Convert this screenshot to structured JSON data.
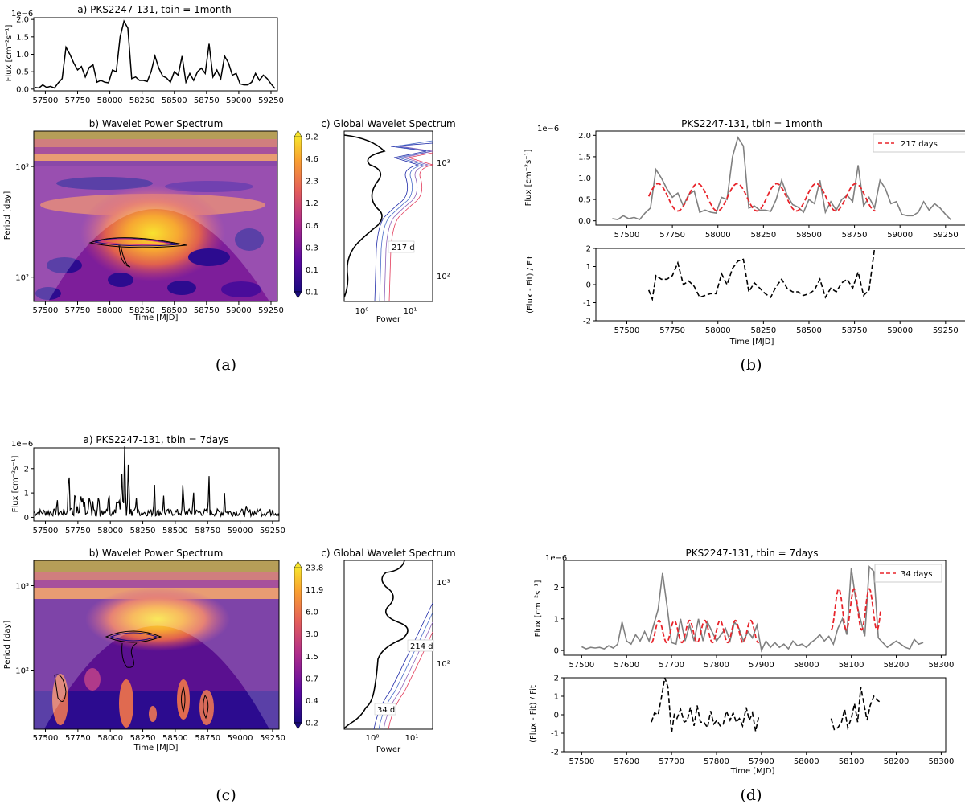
{
  "colors": {
    "curve": "#000000",
    "data_gray": "#808080",
    "fit_red": "#e8232a",
    "wavelet_low": "#2c0b8f",
    "wavelet_mid": "#c43c89",
    "wavelet_high": "#fbe12d"
  },
  "panel_labels": [
    "(a)",
    "(b)",
    "(c)",
    "(d)"
  ],
  "chart_data": [
    {
      "id": "a_flux",
      "type": "line",
      "title": "a) PKS2247-131, tbin = 1month",
      "xlabel": "",
      "ylabel": "Flux [cm⁻²s⁻¹]",
      "offset_label": "1e−6",
      "xlim": [
        57410,
        59300
      ],
      "ylim": [
        -0.05,
        2.05
      ],
      "xticks": [
        57500,
        57750,
        58000,
        58250,
        58500,
        58750,
        59000,
        59250
      ],
      "yticks": [
        0.0,
        0.5,
        1.0,
        1.5,
        2.0
      ],
      "ytick_labels": [
        "0.0",
        "0.5",
        "1.0",
        "1.5",
        "2.0"
      ],
      "series": [
        {
          "x": [
            57420,
            57450,
            57480,
            57510,
            57540,
            57570,
            57600,
            57630,
            57660,
            57690,
            57720,
            57750,
            57780,
            57810,
            57840,
            57870,
            57900,
            57930,
            57960,
            57990,
            58020,
            58050,
            58080,
            58110,
            58140,
            58170,
            58200,
            58230,
            58260,
            58290,
            58320,
            58350,
            58380,
            58410,
            58440,
            58470,
            58500,
            58530,
            58560,
            58590,
            58620,
            58650,
            58680,
            58710,
            58740,
            58770,
            58800,
            58830,
            58860,
            58890,
            58920,
            58950,
            58980,
            59010,
            59040,
            59070,
            59100,
            59130,
            59160,
            59190,
            59220,
            59250,
            59280
          ],
          "y": [
            0.05,
            0.03,
            0.12,
            0.05,
            0.08,
            0.03,
            0.18,
            0.3,
            1.2,
            1.0,
            0.75,
            0.55,
            0.65,
            0.35,
            0.62,
            0.7,
            0.2,
            0.25,
            0.2,
            0.18,
            0.55,
            0.5,
            1.5,
            1.95,
            1.75,
            0.3,
            0.35,
            0.25,
            0.25,
            0.22,
            0.5,
            0.95,
            0.6,
            0.38,
            0.32,
            0.2,
            0.5,
            0.4,
            0.95,
            0.2,
            0.45,
            0.25,
            0.5,
            0.6,
            0.45,
            1.3,
            0.35,
            0.55,
            0.3,
            0.95,
            0.75,
            0.4,
            0.45,
            0.15,
            0.12,
            0.12,
            0.2,
            0.45,
            0.25,
            0.4,
            0.3,
            0.15,
            0.02
          ]
        }
      ]
    },
    {
      "id": "a_wavelet",
      "type": "heatmap",
      "title": "b) Wavelet Power Spectrum",
      "xlabel": "Time [MJD]",
      "ylabel": "Period [day]",
      "xlim": [
        57410,
        59300
      ],
      "ylim_log10": [
        1.78,
        3.32
      ],
      "xticks": [
        57500,
        57750,
        58000,
        58250,
        58500,
        58750,
        59000,
        59250
      ],
      "yticks": [
        100,
        1000
      ],
      "ytick_labels": [
        "10²",
        "10³"
      ],
      "colorbar": [
        "0.1",
        "0.1",
        "0.3",
        "0.6",
        "1.2",
        "2.3",
        "4.6",
        "9.2"
      ],
      "peak": {
        "x": 58200,
        "period": 200
      }
    },
    {
      "id": "a_global",
      "type": "line",
      "title": "c) Global Wavelet Spectrum",
      "xlabel": "Power",
      "xtick_labels": [
        "10⁰",
        "10¹"
      ],
      "yticks": [
        100,
        1000
      ],
      "ytick_labels": [
        "10²",
        "10³"
      ],
      "annotation": "217 d"
    },
    {
      "id": "b_flux",
      "type": "line",
      "title": "PKS2247-131, tbin = 1month",
      "xlabel": "",
      "ylabel": "Flux [cm⁻²s⁻¹]",
      "offset_label": "1e−6",
      "xlim": [
        57330,
        59370
      ],
      "ylim": [
        -0.1,
        2.1
      ],
      "xticks": [
        57500,
        57750,
        58000,
        58250,
        58500,
        58750,
        59000,
        59250
      ],
      "yticks": [
        0.0,
        0.5,
        1.0,
        1.5,
        2.0
      ],
      "ytick_labels": [
        "0.0",
        "0.5",
        "1.0",
        "1.5",
        "2.0"
      ],
      "legend": "217 days",
      "fit": {
        "period": 217,
        "mean": 0.55,
        "amp": 0.32,
        "x0": 57620,
        "x1": 58870,
        "phase_x": 57672
      },
      "series": [
        {
          "x": [
            57420,
            57450,
            57480,
            57510,
            57540,
            57570,
            57600,
            57630,
            57660,
            57690,
            57720,
            57750,
            57780,
            57810,
            57840,
            57870,
            57900,
            57930,
            57960,
            57990,
            58020,
            58050,
            58080,
            58110,
            58140,
            58170,
            58200,
            58230,
            58260,
            58290,
            58320,
            58350,
            58380,
            58410,
            58440,
            58470,
            58500,
            58530,
            58560,
            58590,
            58620,
            58650,
            58680,
            58710,
            58740,
            58770,
            58800,
            58830,
            58860,
            58890,
            58920,
            58950,
            58980,
            59010,
            59040,
            59070,
            59100,
            59130,
            59160,
            59190,
            59220,
            59250,
            59280
          ],
          "y": [
            0.05,
            0.03,
            0.12,
            0.05,
            0.08,
            0.03,
            0.18,
            0.3,
            1.2,
            1.0,
            0.75,
            0.55,
            0.65,
            0.35,
            0.62,
            0.7,
            0.2,
            0.25,
            0.2,
            0.18,
            0.55,
            0.5,
            1.5,
            1.95,
            1.75,
            0.3,
            0.35,
            0.25,
            0.25,
            0.22,
            0.5,
            0.95,
            0.6,
            0.38,
            0.32,
            0.2,
            0.5,
            0.4,
            0.95,
            0.2,
            0.45,
            0.25,
            0.5,
            0.6,
            0.45,
            1.3,
            0.35,
            0.55,
            0.3,
            0.95,
            0.75,
            0.4,
            0.45,
            0.15,
            0.12,
            0.12,
            0.2,
            0.45,
            0.25,
            0.4,
            0.3,
            0.15,
            0.02
          ]
        }
      ]
    },
    {
      "id": "b_resid",
      "type": "line",
      "title": "",
      "xlabel": "Time [MJD]",
      "ylabel": "(Flux - Fit) / Fit",
      "xlim": [
        57330,
        59370
      ],
      "ylim": [
        -2,
        2
      ],
      "xticks": [
        57500,
        57750,
        58000,
        58250,
        58500,
        58750,
        59000,
        59250
      ],
      "yticks": [
        -2,
        -1,
        0,
        1,
        2
      ],
      "series": [
        {
          "x": [
            57620,
            57640,
            57660,
            57690,
            57720,
            57750,
            57780,
            57810,
            57840,
            57870,
            57900,
            57930,
            57960,
            57990,
            58020,
            58050,
            58080,
            58110,
            58140,
            58170,
            58200,
            58230,
            58260,
            58290,
            58320,
            58350,
            58380,
            58410,
            58440,
            58470,
            58500,
            58530,
            58560,
            58590,
            58620,
            58650,
            58680,
            58710,
            58740,
            58770,
            58800,
            58830,
            58860
          ],
          "y": [
            -0.3,
            -0.8,
            0.5,
            0.3,
            0.3,
            0.5,
            1.2,
            0.0,
            0.2,
            -0.1,
            -0.7,
            -0.6,
            -0.5,
            -0.5,
            0.6,
            0.0,
            0.9,
            1.3,
            1.4,
            -0.4,
            0.1,
            -0.2,
            -0.5,
            -0.7,
            -0.1,
            0.3,
            -0.2,
            -0.4,
            -0.4,
            -0.6,
            -0.5,
            -0.3,
            0.3,
            -0.7,
            -0.2,
            -0.4,
            0.1,
            0.3,
            -0.2,
            0.7,
            -0.6,
            -0.3,
            2.1
          ]
        }
      ]
    },
    {
      "id": "c_flux",
      "type": "line",
      "title": "a) PKS2247-131, tbin = 7days",
      "xlabel": "",
      "ylabel": "Flux [cm⁻²s⁻¹]",
      "offset_label": "1e−6",
      "xlim": [
        57410,
        59300
      ],
      "ylim": [
        -0.15,
        2.85
      ],
      "xticks": [
        57500,
        57750,
        58000,
        58250,
        58500,
        58750,
        59000,
        59250
      ],
      "yticks": [
        0,
        1,
        2
      ],
      "spikes": [
        {
          "x": 57680,
          "y": 2.45
        },
        {
          "x": 57590,
          "y": 0.9
        },
        {
          "x": 57730,
          "y": 1.1
        },
        {
          "x": 57790,
          "y": 1.0
        },
        {
          "x": 57840,
          "y": 1.2
        },
        {
          "x": 57910,
          "y": 1.2
        },
        {
          "x": 57990,
          "y": 1.0
        },
        {
          "x": 58090,
          "y": 2.0
        },
        {
          "x": 58110,
          "y": 2.6
        },
        {
          "x": 58140,
          "y": 2.65
        },
        {
          "x": 58200,
          "y": 0.9
        },
        {
          "x": 58340,
          "y": 1.5
        },
        {
          "x": 58410,
          "y": 1.0
        },
        {
          "x": 58560,
          "y": 1.7
        },
        {
          "x": 58640,
          "y": 1.3
        },
        {
          "x": 58760,
          "y": 1.9
        },
        {
          "x": 58880,
          "y": 1.0
        },
        {
          "x": 59050,
          "y": 0.6
        },
        {
          "x": 59150,
          "y": 0.5
        },
        {
          "x": 59250,
          "y": 0.35
        }
      ]
    },
    {
      "id": "c_wavelet",
      "type": "heatmap",
      "title": "b) Wavelet Power Spectrum",
      "xlabel": "Time [MJD]",
      "ylabel": "Period [day]",
      "xlim": [
        57410,
        59300
      ],
      "ylim_log10": [
        1.3,
        3.3
      ],
      "xticks": [
        57500,
        57750,
        58000,
        58250,
        58500,
        58750,
        59000,
        59250
      ],
      "yticks": [
        100,
        1000
      ],
      "ytick_labels": [
        "10²",
        "10³"
      ],
      "colorbar": [
        "0.2",
        "0.4",
        "0.7",
        "1.5",
        "3.0",
        "6.0",
        "11.9",
        "23.8"
      ],
      "peak": {
        "x": 58230,
        "period": 200
      }
    },
    {
      "id": "c_global",
      "type": "line",
      "title": "c) Global Wavelet Spectrum",
      "xlabel": "Power",
      "xtick_labels": [
        "10⁰",
        "10¹"
      ],
      "yticks": [
        100,
        1000
      ],
      "ytick_labels": [
        "10²",
        "10³"
      ],
      "annotations": [
        "214 d",
        "34 d"
      ]
    },
    {
      "id": "d_flux",
      "type": "line",
      "title": "PKS2247-131, tbin = 7days",
      "xlabel": "",
      "ylabel": "Flux [cm⁻²s⁻¹]",
      "offset_label": "1e−6",
      "xlim": [
        57460,
        58310
      ],
      "ylim": [
        -0.15,
        2.85
      ],
      "xticks": [
        57500,
        57600,
        57700,
        57800,
        57900,
        58000,
        58100,
        58200,
        58300
      ],
      "yticks": [
        0,
        1,
        2
      ],
      "legend": "34 days",
      "fits": [
        {
          "period": 34,
          "mean": 0.6,
          "amp": 0.35,
          "x0": 57655,
          "x1": 57895,
          "phase_x": 57672
        },
        {
          "period": 34,
          "mean": 1.3,
          "amp": 0.65,
          "x0": 58055,
          "x1": 58165,
          "phase_x": 58072
        }
      ],
      "series": [
        {
          "x": [
            57500,
            57510,
            57520,
            57530,
            57540,
            57550,
            57560,
            57570,
            57580,
            57590,
            57600,
            57610,
            57620,
            57630,
            57640,
            57650,
            57660,
            57670,
            57680,
            57690,
            57700,
            57710,
            57720,
            57730,
            57740,
            57750,
            57760,
            57770,
            57780,
            57790,
            57800,
            57810,
            57820,
            57830,
            57840,
            57850,
            57860,
            57870,
            57880,
            57890,
            57900,
            57910,
            57920,
            57930,
            57940,
            57950,
            57960,
            57970,
            57980,
            57990,
            58000,
            58010,
            58020,
            58030,
            58040,
            58050,
            58060,
            58070,
            58080,
            58090,
            58100,
            58110,
            58120,
            58130,
            58140,
            58150,
            58160,
            58170,
            58180,
            58190,
            58200,
            58210,
            58220,
            58230,
            58240,
            58250,
            58260
          ],
          "y": [
            0.12,
            0.05,
            0.1,
            0.08,
            0.1,
            0.05,
            0.15,
            0.08,
            0.2,
            0.9,
            0.3,
            0.2,
            0.5,
            0.3,
            0.6,
            0.3,
            0.8,
            1.3,
            2.45,
            1.4,
            0.25,
            0.2,
            1.0,
            0.3,
            0.8,
            0.3,
            1.0,
            0.3,
            0.9,
            0.6,
            0.3,
            0.5,
            0.7,
            0.3,
            0.9,
            0.7,
            0.3,
            0.6,
            0.4,
            0.8,
            0.0,
            0.3,
            0.1,
            0.25,
            0.1,
            0.2,
            0.05,
            0.3,
            0.15,
            0.2,
            0.1,
            0.25,
            0.35,
            0.5,
            0.3,
            0.45,
            0.2,
            0.7,
            1.0,
            0.5,
            2.6,
            1.6,
            1.0,
            0.45,
            2.65,
            2.5,
            0.4,
            0.25,
            0.1,
            0.2,
            0.3,
            0.2,
            0.1,
            0.05,
            0.35,
            0.2,
            0.25
          ]
        }
      ]
    },
    {
      "id": "d_resid",
      "type": "line",
      "title": "",
      "xlabel": "Time [MJD]",
      "ylabel": "(Flux - Fit) / Fit",
      "xlim": [
        57460,
        58310
      ],
      "ylim": [
        -2,
        2
      ],
      "xticks": [
        57500,
        57600,
        57700,
        57800,
        57900,
        58000,
        58100,
        58200,
        58300
      ],
      "yticks": [
        -2,
        -1,
        0,
        1,
        2
      ],
      "segments": [
        {
          "x": [
            57655,
            57662,
            57670,
            57678,
            57685,
            57692,
            57700,
            57706,
            57712,
            57720,
            57728,
            57735,
            57742,
            57750,
            57757,
            57764,
            57772,
            57780,
            57787,
            57794,
            57801,
            57808,
            57815,
            57822,
            57830,
            57837,
            57844,
            57851,
            57858,
            57866,
            57873,
            57880,
            57887,
            57894
          ],
          "y": [
            -0.4,
            0.1,
            0.0,
            1.0,
            2.0,
            1.5,
            -1.0,
            0.0,
            -0.2,
            0.3,
            -0.4,
            -0.3,
            0.4,
            -0.6,
            0.5,
            -0.4,
            -0.4,
            -0.7,
            0.2,
            -0.5,
            -0.3,
            -0.6,
            -0.5,
            0.2,
            -0.3,
            0.1,
            -0.4,
            -0.2,
            -0.6,
            0.4,
            -0.3,
            0.1,
            -0.9,
            -0.1
          ]
        },
        {
          "x": [
            58055,
            58062,
            58070,
            58078,
            58085,
            58092,
            58100,
            58107,
            58114,
            58121,
            58128,
            58135,
            58142,
            58150,
            58157,
            58163
          ],
          "y": [
            -0.2,
            -0.8,
            -0.7,
            -0.4,
            0.3,
            -0.7,
            -0.2,
            0.6,
            -0.4,
            1.5,
            0.6,
            -0.3,
            0.5,
            1.0,
            0.8,
            0.7
          ]
        }
      ]
    }
  ]
}
